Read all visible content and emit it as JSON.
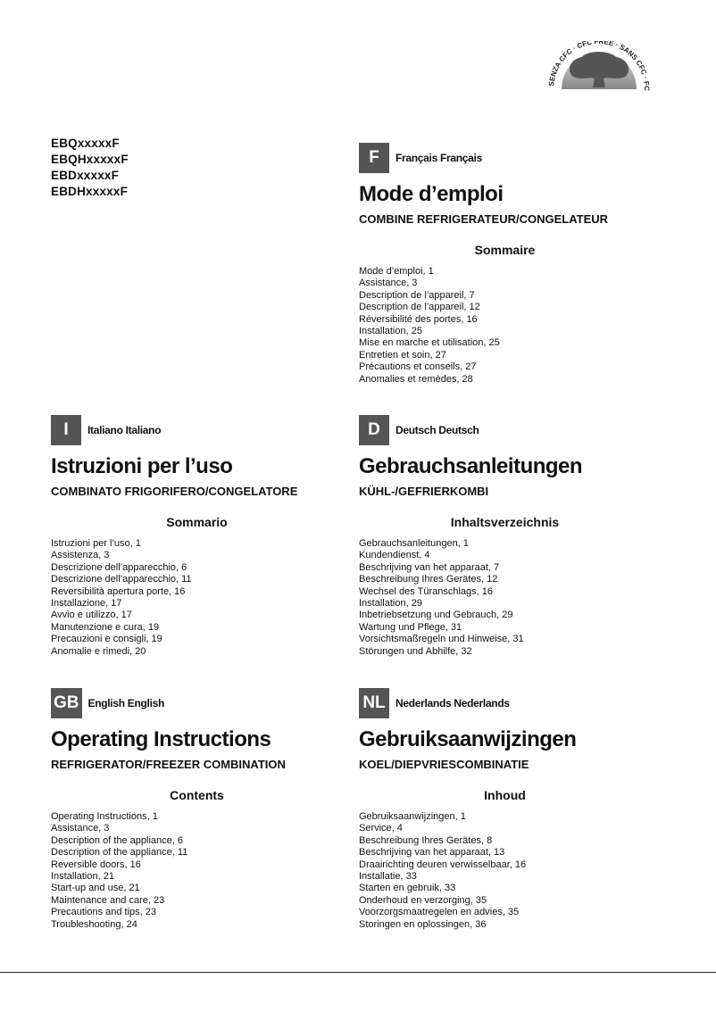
{
  "logo": {
    "text": "SENZA CFC · CFC FREE · SANS CFC · FCKW FREI"
  },
  "models": [
    "EBQxxxxxF",
    "EBQHxxxxxF",
    "EBDxxxxxF",
    "EBDHxxxxxF"
  ],
  "sections": [
    {
      "code": "F",
      "lang": "Français Français",
      "title": "Mode d’emploi",
      "subtitle": "COMBINE REFRIGERATEUR/CONGELATEUR",
      "heading": "Sommaire",
      "items": [
        "Mode d’emploi, 1",
        "Assistance, 3",
        "Description de l’appareil, 7",
        "Description de l’appareil, 12",
        "Réversibilité des portes, 16",
        "Installation, 25",
        "Mise en marche et utilisation, 25",
        "Entretien et soin, 27",
        "Précautions et conseils, 27",
        "Anomalies et remèdes, 28"
      ]
    },
    {
      "code": "I",
      "lang": "Italiano Italiano",
      "title": "Istruzioni per l’uso",
      "subtitle": "COMBINATO FRIGORIFERO/CONGELATORE",
      "heading": "Sommario",
      "items": [
        "Istruzioni per l’uso, 1",
        "Assistenza, 3",
        "Descrizione dell’apparecchio, 6",
        "Descrizione dell’apparecchio, 11",
        "Reversibilità apertura porte, 16",
        "Installazione, 17",
        "Avvio e utilizzo, 17",
        "Manutenzione e cura, 19",
        "Precauzioni e consigli, 19",
        "Anomalie e rimedi, 20"
      ]
    },
    {
      "code": "D",
      "lang": "Deutsch Deutsch",
      "title": "Gebrauchsanleitungen",
      "subtitle": "KÜHL-/GEFRIERKOMBI",
      "heading": "Inhaltsverzeichnis",
      "items": [
        "Gebrauchsanleitungen, 1",
        "Kundendienst, 4",
        "Beschrijving van het apparaat, 7",
        "Beschreibung Ihres Gerätes, 12",
        "Wechsel des Türanschlags, 16",
        "Installation, 29",
        "Inbetriebsetzung und Gebrauch, 29",
        "Wartung und Pflege, 31",
        "Vorsichtsmaßregeln und Hinweise, 31",
        "Störungen und Abhilfe, 32"
      ]
    },
    {
      "code": "GB",
      "lang": "English English",
      "title": "Operating Instructions",
      "subtitle": "REFRIGERATOR/FREEZER COMBINATION",
      "heading": "Contents",
      "items": [
        "Operating Instructions, 1",
        "Assistance, 3",
        "Description of the appliance, 6",
        "Description of the appliance, 11",
        "Reversible doors, 16",
        "Installation, 21",
        "Start-up and use, 21",
        "Maintenance and care, 23",
        "Precautions and tips, 23",
        "Troubleshooting, 24"
      ]
    },
    {
      "code": "NL",
      "lang": "Nederlands Nederlands",
      "title": "Gebruiksaanwijzingen",
      "subtitle": "KOEL/DIEPVRIESCOMBINATIE",
      "heading": "Inhoud",
      "items": [
        "Gebruiksaanwijzingen, 1",
        "Service, 4",
        "Beschreibung Ihres Gerätes, 8",
        "Beschrijving van het apparaat, 13",
        "Draairichting deuren verwisselbaar, 16",
        "Installatie, 33",
        "Starten en gebruik, 33",
        "Onderhoud en verzorging, 35",
        "Voorzorgsmaatregelen en advies, 35",
        "Storingen en oplossingen, 36"
      ]
    }
  ]
}
